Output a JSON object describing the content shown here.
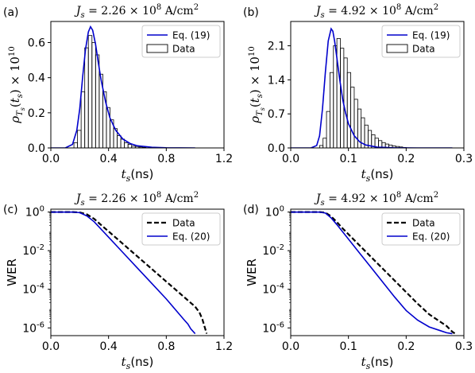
{
  "chart_data": [
    {
      "panel_label": "(a)",
      "type": "bar",
      "title_prefix": "J",
      "title_sub": "s",
      "title_value": " = 2.26 × 10",
      "title_exp": "8",
      "title_unit": " A/cm",
      "title_unit_exp": "2",
      "xlabel_main": "t",
      "xlabel_sub": "s",
      "xlabel_unit": "(ns)",
      "ylabel": "ρ_{T_s}(t_s) × 10^10",
      "xlim": [
        0.0,
        1.2
      ],
      "ylim": [
        0.0,
        0.72
      ],
      "xticks": [
        0.0,
        0.4,
        0.8,
        1.2
      ],
      "xtick_labels": [
        "0.0",
        "0.4",
        "0.8",
        "1.2"
      ],
      "yticks": [
        0.0,
        0.2,
        0.4,
        0.6
      ],
      "ytick_labels": [
        "0.0",
        "0.2",
        "0.4",
        "0.6"
      ],
      "legend_position": "top-right",
      "legend": [
        {
          "label": "Eq. (19)",
          "kind": "line",
          "color": "#0000cc"
        },
        {
          "label": "Data",
          "kind": "bar",
          "color": "#000000"
        }
      ],
      "series": [
        {
          "name": "Data",
          "kind": "histogram",
          "color": "#000000",
          "bins": [
            0.16,
            0.185,
            0.21,
            0.235,
            0.26,
            0.285,
            0.31,
            0.335,
            0.36,
            0.385,
            0.41,
            0.435,
            0.46,
            0.485,
            0.51,
            0.535,
            0.56,
            0.585,
            0.61,
            0.635,
            0.66
          ],
          "values": [
            0.03,
            0.1,
            0.32,
            0.57,
            0.64,
            0.6,
            0.53,
            0.42,
            0.32,
            0.23,
            0.16,
            0.11,
            0.07,
            0.05,
            0.03,
            0.02,
            0.01,
            0.008,
            0.005,
            0.003
          ]
        },
        {
          "name": "Eq. (19)",
          "kind": "line",
          "color": "#0000cc",
          "x": [
            0.0,
            0.1,
            0.15,
            0.18,
            0.2,
            0.22,
            0.24,
            0.26,
            0.275,
            0.29,
            0.31,
            0.33,
            0.35,
            0.38,
            0.41,
            0.45,
            0.5,
            0.55,
            0.6,
            0.7,
            0.8,
            1.0
          ],
          "y": [
            0.0,
            0.0,
            0.02,
            0.1,
            0.22,
            0.4,
            0.56,
            0.66,
            0.69,
            0.67,
            0.59,
            0.48,
            0.38,
            0.26,
            0.17,
            0.1,
            0.05,
            0.025,
            0.012,
            0.004,
            0.001,
            0.0
          ]
        }
      ]
    },
    {
      "panel_label": "(b)",
      "type": "bar",
      "title_prefix": "J",
      "title_sub": "s",
      "title_value": " = 4.92 × 10",
      "title_exp": "8",
      "title_unit": " A/cm",
      "title_unit_exp": "2",
      "xlabel_main": "t",
      "xlabel_sub": "s",
      "xlabel_unit": "(ns)",
      "ylabel": "ρ_{T_s}(t_s) × 10^10",
      "xlim": [
        0.0,
        0.3
      ],
      "ylim": [
        0.0,
        2.6
      ],
      "xticks": [
        0.0,
        0.1,
        0.2,
        0.3
      ],
      "xtick_labels": [
        "0.0",
        "0.1",
        "0.2",
        "0.3"
      ],
      "yticks": [
        0.0,
        0.7,
        1.4,
        2.1
      ],
      "ytick_labels": [
        "0.0",
        "0.7",
        "1.4",
        "2.1"
      ],
      "legend_position": "top-right",
      "legend": [
        {
          "label": "Eq. (19)",
          "kind": "line",
          "color": "#0000cc"
        },
        {
          "label": "Data",
          "kind": "bar",
          "color": "#000000"
        }
      ],
      "series": [
        {
          "name": "Data",
          "kind": "histogram",
          "color": "#000000",
          "bins": [
            0.05,
            0.056,
            0.062,
            0.068,
            0.074,
            0.08,
            0.086,
            0.092,
            0.098,
            0.104,
            0.11,
            0.116,
            0.122,
            0.128,
            0.134,
            0.14,
            0.146,
            0.152,
            0.158,
            0.164,
            0.17,
            0.176,
            0.182,
            0.188,
            0.194,
            0.2
          ],
          "values": [
            0.05,
            0.2,
            0.75,
            1.55,
            2.1,
            2.25,
            2.05,
            1.85,
            1.55,
            1.25,
            1.0,
            0.8,
            0.62,
            0.47,
            0.36,
            0.27,
            0.2,
            0.15,
            0.11,
            0.08,
            0.06,
            0.04,
            0.03,
            0.02,
            0.01
          ]
        },
        {
          "name": "Eq. (19)",
          "kind": "line",
          "color": "#0000cc",
          "x": [
            0.0,
            0.035,
            0.045,
            0.05,
            0.055,
            0.06,
            0.065,
            0.07,
            0.073,
            0.076,
            0.08,
            0.085,
            0.09,
            0.095,
            0.1,
            0.11,
            0.12,
            0.13,
            0.15,
            0.18,
            0.22,
            0.28
          ],
          "y": [
            0.0,
            0.0,
            0.05,
            0.25,
            0.8,
            1.55,
            2.2,
            2.45,
            2.4,
            2.2,
            1.85,
            1.4,
            1.0,
            0.72,
            0.5,
            0.25,
            0.12,
            0.06,
            0.015,
            0.003,
            0.0,
            0.0
          ]
        }
      ]
    },
    {
      "panel_label": "(c)",
      "type": "line",
      "title_prefix": "J",
      "title_sub": "s",
      "title_value": " = 2.26 × 10",
      "title_exp": "8",
      "title_unit": " A/cm",
      "title_unit_exp": "2",
      "xlabel_main": "t",
      "xlabel_sub": "s",
      "xlabel_unit": "(ns)",
      "ylabel": "WER",
      "log_y": true,
      "xlim": [
        0.0,
        1.2
      ],
      "ylim_exp": [
        -6.4,
        0.15
      ],
      "xticks": [
        0.0,
        0.4,
        0.8,
        1.2
      ],
      "xtick_labels": [
        "0.0",
        "0.4",
        "0.8",
        "1.2"
      ],
      "yticks_exp": [
        0,
        -2,
        -4,
        -6
      ],
      "ytick_bases": [
        "10",
        "10",
        "10",
        "10"
      ],
      "ytick_exps": [
        "0",
        "-2",
        "-4",
        "-6"
      ],
      "legend_position": "top-right",
      "legend": [
        {
          "label": "Data",
          "kind": "dashed",
          "color": "#000000"
        },
        {
          "label": "Eq. (20)",
          "kind": "line",
          "color": "#0000cc"
        }
      ],
      "series": [
        {
          "name": "Data",
          "kind": "dashed",
          "color": "#000000",
          "x": [
            0.0,
            0.15,
            0.2,
            0.25,
            0.3,
            0.35,
            0.4,
            0.5,
            0.6,
            0.7,
            0.8,
            0.9,
            1.0,
            1.03,
            1.05,
            1.06,
            1.07,
            1.08
          ],
          "log10_y": [
            0.0,
            0.0,
            -0.02,
            -0.12,
            -0.35,
            -0.68,
            -1.0,
            -1.65,
            -2.3,
            -2.95,
            -3.6,
            -4.25,
            -4.9,
            -5.2,
            -5.55,
            -5.8,
            -6.05,
            -6.3
          ]
        },
        {
          "name": "Eq. (20)",
          "kind": "line",
          "color": "#0000cc",
          "x": [
            0.0,
            0.15,
            0.2,
            0.25,
            0.3,
            0.4,
            0.5,
            0.6,
            0.7,
            0.8,
            0.88,
            0.92,
            0.95,
            0.97,
            1.0
          ],
          "log10_y": [
            0.0,
            0.0,
            -0.03,
            -0.2,
            -0.5,
            -1.3,
            -2.1,
            -2.9,
            -3.7,
            -4.5,
            -5.2,
            -5.55,
            -5.8,
            -6.05,
            -6.3
          ]
        }
      ]
    },
    {
      "panel_label": "(d)",
      "type": "line",
      "title_prefix": "J",
      "title_sub": "s",
      "title_value": " = 4.92 × 10",
      "title_exp": "8",
      "title_unit": " A/cm",
      "title_unit_exp": "2",
      "xlabel_main": "t",
      "xlabel_sub": "s",
      "xlabel_unit": "(ns)",
      "ylabel": "WER",
      "log_y": true,
      "xlim": [
        0.0,
        0.3
      ],
      "ylim_exp": [
        -6.4,
        0.15
      ],
      "xticks": [
        0.0,
        0.1,
        0.2,
        0.3
      ],
      "xtick_labels": [
        "0.0",
        "0.1",
        "0.2",
        "0.3"
      ],
      "yticks_exp": [
        0,
        -2,
        -4,
        -6
      ],
      "ytick_bases": [
        "10",
        "10",
        "10",
        "10"
      ],
      "ytick_exps": [
        "0",
        "-2",
        "-4",
        "-6"
      ],
      "legend_position": "top-right",
      "legend": [
        {
          "label": "Data",
          "kind": "dashed",
          "color": "#000000"
        },
        {
          "label": "Eq. (20)",
          "kind": "line",
          "color": "#0000cc"
        }
      ],
      "series": [
        {
          "name": "Data",
          "kind": "dashed",
          "color": "#000000",
          "x": [
            0.0,
            0.05,
            0.06,
            0.07,
            0.08,
            0.09,
            0.1,
            0.12,
            0.14,
            0.16,
            0.18,
            0.2,
            0.22,
            0.24,
            0.26,
            0.27,
            0.275,
            0.28,
            0.285
          ],
          "log10_y": [
            0.0,
            0.0,
            -0.03,
            -0.22,
            -0.52,
            -0.85,
            -1.15,
            -1.75,
            -2.35,
            -2.95,
            -3.55,
            -4.15,
            -4.75,
            -5.3,
            -5.7,
            -5.9,
            -6.05,
            -6.2,
            -6.3
          ]
        },
        {
          "name": "Eq. (20)",
          "kind": "line",
          "color": "#0000cc",
          "x": [
            0.0,
            0.05,
            0.06,
            0.07,
            0.08,
            0.1,
            0.12,
            0.14,
            0.16,
            0.18,
            0.2,
            0.22,
            0.24,
            0.26,
            0.27,
            0.28
          ],
          "log10_y": [
            0.0,
            0.0,
            -0.05,
            -0.3,
            -0.65,
            -1.4,
            -2.15,
            -2.9,
            -3.65,
            -4.4,
            -5.1,
            -5.6,
            -5.95,
            -6.15,
            -6.25,
            -6.3
          ]
        }
      ]
    }
  ]
}
